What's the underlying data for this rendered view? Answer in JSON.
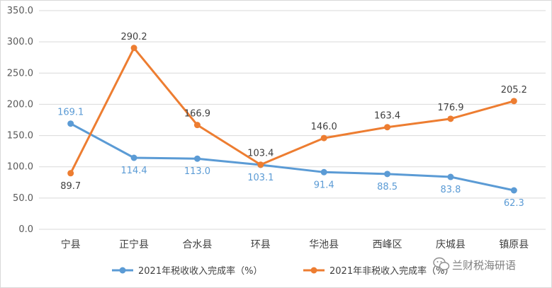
{
  "chart_data": {
    "type": "line",
    "title": "",
    "xlabel": "",
    "ylabel": "",
    "categories": [
      "宁县",
      "正宁县",
      "合水县",
      "环县",
      "华池县",
      "西峰区",
      "庆城县",
      "镇原县"
    ],
    "ylim": [
      0,
      350
    ],
    "yticks": [
      "0.0",
      "50.0",
      "100.0",
      "150.0",
      "200.0",
      "250.0",
      "300.0",
      "350.0"
    ],
    "grid": true,
    "legend_position": "bottom",
    "series": [
      {
        "name": "2021年税收收入完成率（%）",
        "color": "#5b9bd5",
        "values": [
          169.1,
          114.4,
          113.0,
          103.1,
          91.4,
          88.5,
          83.8,
          62.3
        ],
        "labels": [
          "169.1",
          "114.4",
          "113.0",
          "103.1",
          "91.4",
          "88.5",
          "83.8",
          "62.3"
        ]
      },
      {
        "name": "2021年非税收入完成率（%）",
        "color": "#ed7d31",
        "values": [
          89.7,
          290.2,
          166.9,
          103.4,
          146.0,
          163.4,
          176.9,
          205.2
        ],
        "labels": [
          "89.7",
          "290.2",
          "166.9",
          "103.4",
          "146.0",
          "163.4",
          "176.9",
          "205.2"
        ]
      }
    ]
  },
  "watermark": {
    "text": "兰财税海研语",
    "icon": "wechat-icon"
  }
}
